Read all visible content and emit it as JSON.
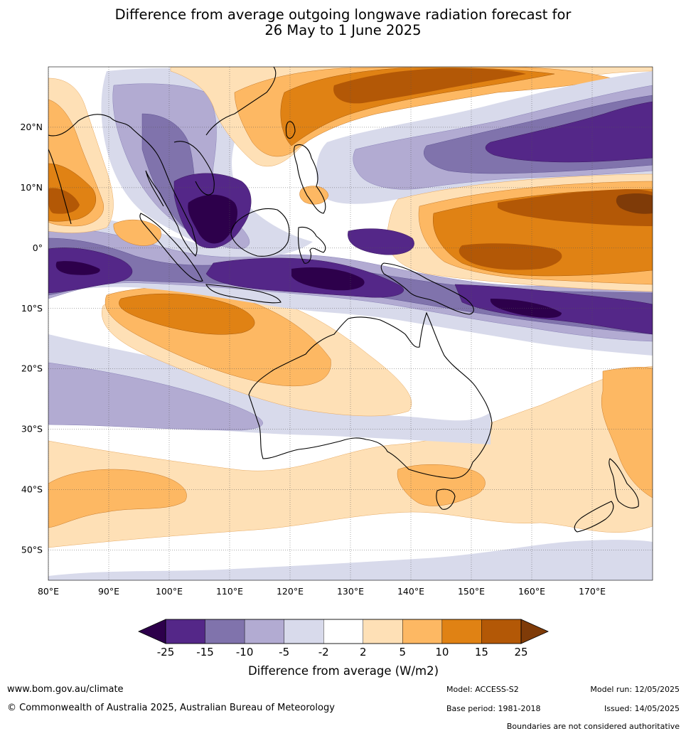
{
  "title": {
    "line1": "Difference from average outgoing longwave radiation forecast for",
    "line2": "26 May to 1 June 2025"
  },
  "map": {
    "lon_range": [
      80,
      180
    ],
    "lat_range": [
      -55,
      30
    ],
    "lon_ticks": [
      "80°E",
      "90°E",
      "100°E",
      "110°E",
      "120°E",
      "130°E",
      "140°E",
      "150°E",
      "160°E",
      "170°E"
    ],
    "lat_ticks": [
      "20°N",
      "10°N",
      "0°",
      "10°S",
      "20°S",
      "30°S",
      "40°S",
      "50°S"
    ],
    "lon_tick_values": [
      80,
      90,
      100,
      110,
      120,
      130,
      140,
      150,
      160,
      170
    ],
    "lat_tick_values": [
      20,
      10,
      0,
      -10,
      -20,
      -30,
      -40,
      -50
    ],
    "gridlines": true,
    "palette": [
      "#2d004b",
      "#542788",
      "#8073ac",
      "#b2abd2",
      "#d8daeb",
      "#ffffff",
      "#fee0b6",
      "#fdb863",
      "#e08214",
      "#b35806",
      "#7f3b08"
    ]
  },
  "colorbar": {
    "labels": [
      "-25",
      "-15",
      "-10",
      "-5",
      "-2",
      "2",
      "5",
      "10",
      "15",
      "25"
    ],
    "title": "Difference from average (W/m2)",
    "colors": [
      "#542788",
      "#8073ac",
      "#b2abd2",
      "#d8daeb",
      "#ffffff",
      "#fee0b6",
      "#fdb863",
      "#e08214",
      "#b35806"
    ],
    "low_extend_color": "#2d004b",
    "high_extend_color": "#7f3b08"
  },
  "footer": {
    "website": "www.bom.gov.au/climate",
    "copyright": "© Commonwealth of Australia 2025, Australian Bureau of Meteorology",
    "model": "Model: ACCESS-S2",
    "base_period": "Base period: 1981-2018",
    "model_run": "Model run: 12/05/2025",
    "issued": "Issued: 14/05/2025",
    "disclaimer": "Boundaries are not considered authoritative"
  }
}
